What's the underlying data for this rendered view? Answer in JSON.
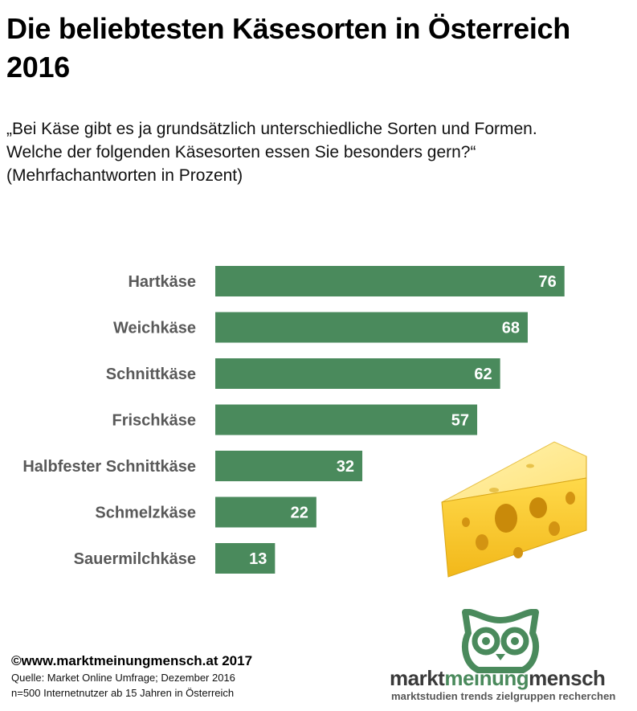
{
  "title": "Die beliebtesten Käsesorten in Österreich 2016",
  "subtitle_lines": [
    "„Bei Käse gibt es ja grundsätzlich unterschiedliche Sorten und Formen.",
    "Welche der folgenden Käsesorten essen Sie besonders gern?“",
    "(Mehrfachantworten in Prozent)"
  ],
  "chart_data": {
    "type": "bar",
    "orientation": "horizontal",
    "categories": [
      "Hartkäse",
      "Weichkäse",
      "Schnittkäse",
      "Frischkäse",
      "Halbfester Schnittkäse",
      "Schmelzkäse",
      "Sauermilchkäse"
    ],
    "values": [
      76,
      68,
      62,
      57,
      32,
      22,
      13
    ],
    "data_labels": [
      "76",
      "68",
      "62",
      "57",
      "32",
      "22",
      "13"
    ],
    "bar_color": "#4a8a5c",
    "label_color": "#595959",
    "value_label_color": "#ffffff",
    "grid": false,
    "legend": "none"
  },
  "footer": {
    "copyright": "©www.marktmeinungmensch.at 2017",
    "source": "Quelle: Market Online Umfrage; Dezember 2016",
    "sample": "n=500 Internetnutzer ab 15 Jahren in Österreich"
  },
  "logo": {
    "word1": "markt",
    "word2": "meinung",
    "word3": "mensch",
    "tagline": "marktstudien trends zielgruppen recherchen",
    "color": "#4a8a5c"
  }
}
